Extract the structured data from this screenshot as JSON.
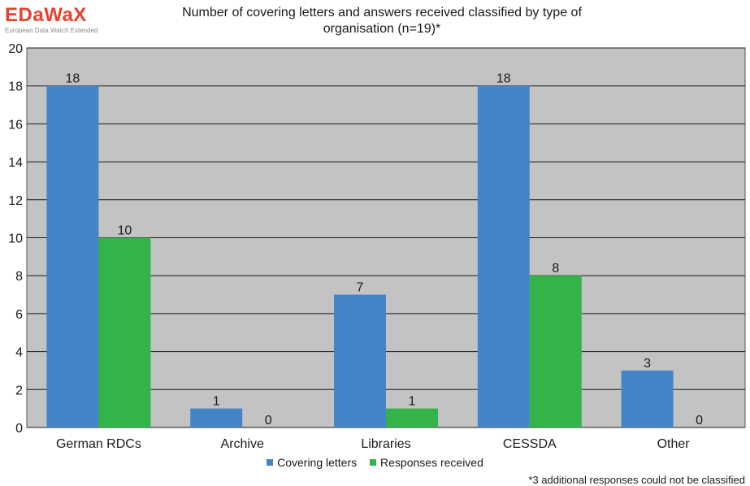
{
  "logo": {
    "main": "EDaWaX",
    "sub": "European Data Watch Extended"
  },
  "colors": {
    "covering": "#4485c8",
    "responses": "#35b34b",
    "plot_bg": "#c3c3c3",
    "grid": "#1a1a1a"
  },
  "footnote": "*3 additional responses could not be classified",
  "chart_data": {
    "type": "bar",
    "title": "Number of covering letters and answers received classified by type of organisation (n=19)*",
    "categories": [
      "German RDCs",
      "Archive",
      "Libraries",
      "CESSDA",
      "Other"
    ],
    "series": [
      {
        "name": "Covering letters",
        "values": [
          18,
          1,
          7,
          18,
          3
        ]
      },
      {
        "name": "Responses received",
        "values": [
          10,
          0,
          1,
          8,
          0
        ]
      }
    ],
    "ylim": [
      0,
      20
    ],
    "yticks": [
      0,
      2,
      4,
      6,
      8,
      10,
      12,
      14,
      16,
      18,
      20
    ],
    "grid": true,
    "legend": "bottom"
  }
}
